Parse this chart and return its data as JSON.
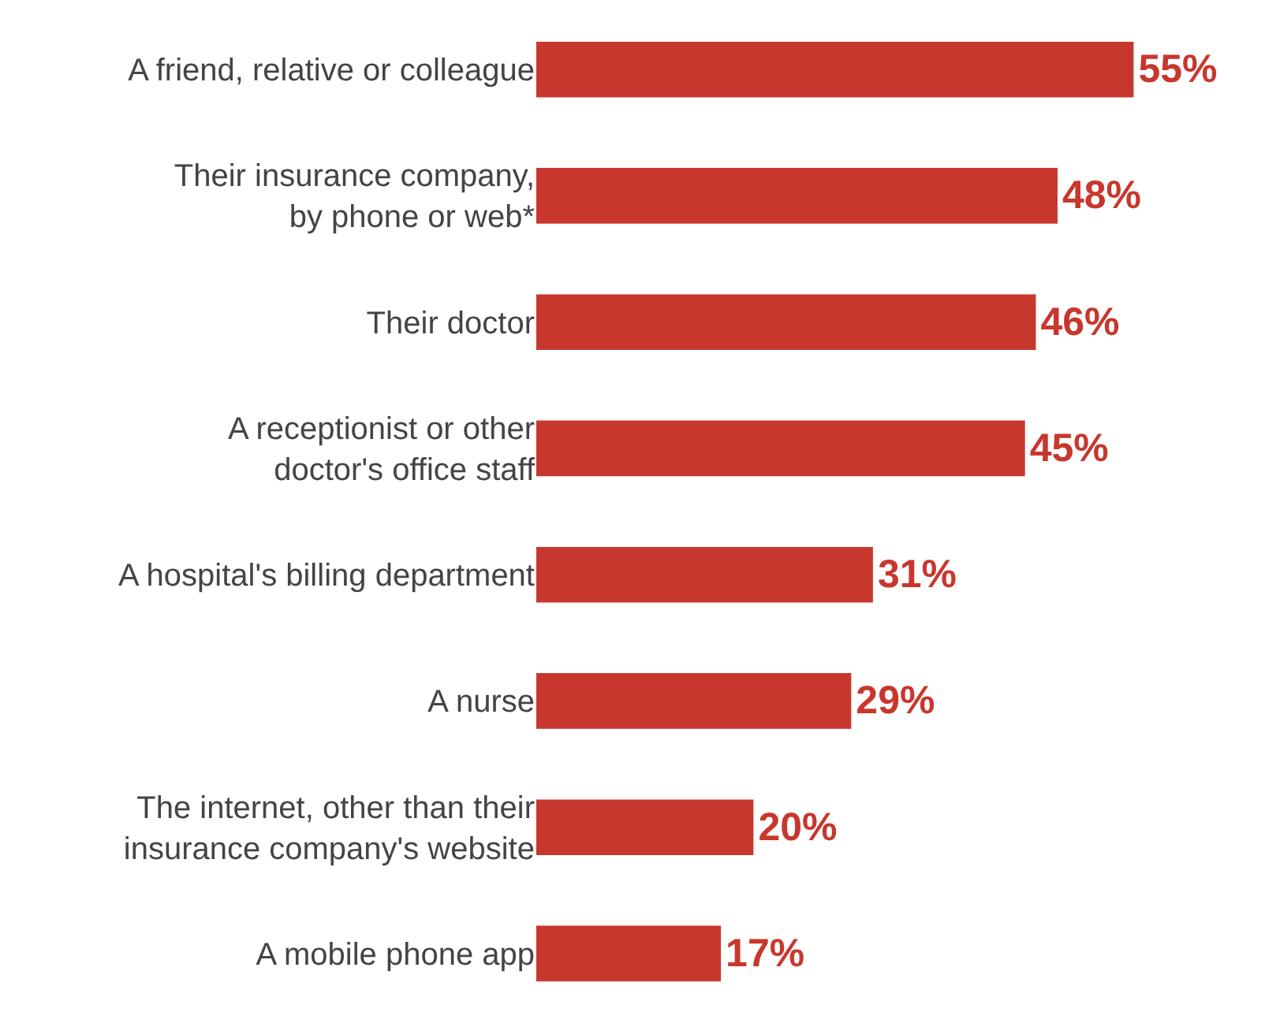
{
  "chart_data": {
    "type": "bar",
    "orientation": "horizontal",
    "categories": [
      "A friend, relative or colleague",
      "Their insurance company,\nby phone or web*",
      "Their doctor",
      "A receptionist or other\ndoctor's office staff",
      "A hospital's billing department",
      "A nurse",
      "The internet, other than their\ninsurance company's website",
      "A mobile phone app"
    ],
    "values": [
      55,
      48,
      46,
      45,
      31,
      29,
      20,
      17
    ],
    "value_labels": [
      "55%",
      "48%",
      "46%",
      "45%",
      "31%",
      "29%",
      "20%",
      "17%"
    ],
    "color": "#c8372d"
  }
}
